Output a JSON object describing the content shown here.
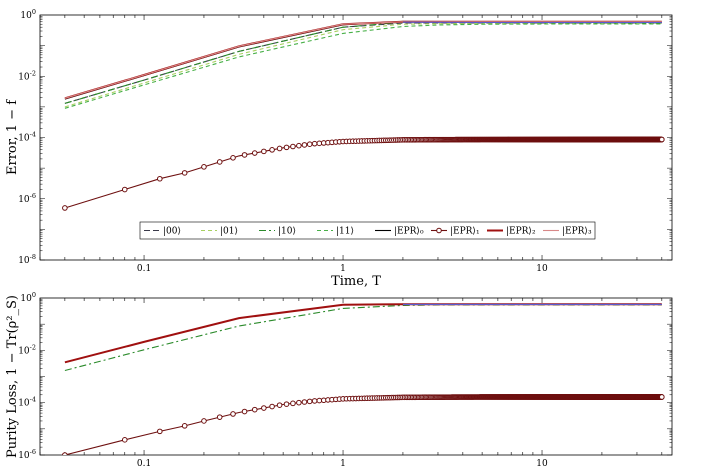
{
  "chart_data": [
    {
      "type": "line",
      "ylabel": "Error, 1 − f",
      "xlabel": "Time, T",
      "xscale": "log",
      "yscale": "log",
      "xlim": [
        0.03,
        45
      ],
      "ylim": [
        1e-08,
        1
      ],
      "x_ticks": [
        {
          "v": 0.1,
          "label": "0.1"
        },
        {
          "v": 1,
          "label": "1"
        },
        {
          "v": 10,
          "label": "10"
        }
      ],
      "y_ticks": [
        {
          "v": 1,
          "label": "10^0"
        },
        {
          "v": 0.01,
          "label": "10^-2"
        },
        {
          "v": 0.0001,
          "label": "10^-4"
        },
        {
          "v": 1e-06,
          "label": "10^-6"
        },
        {
          "v": 1e-08,
          "label": "10^-8"
        }
      ],
      "legend_position": "bottom-center",
      "series": [
        {
          "name": "|00⟩",
          "color": "#3a3a4a",
          "dash": "6,3",
          "x": [
            0.04,
            0.1,
            0.3,
            1,
            2,
            3,
            5,
            10,
            40
          ],
          "y": [
            0.0013,
            0.0075,
            0.065,
            0.4,
            0.55,
            0.55,
            0.55,
            0.55,
            0.55
          ]
        },
        {
          "name": "|01⟩",
          "color": "#a8d060",
          "dash": "4,3",
          "x": [
            0.04,
            0.1,
            0.3,
            1,
            2,
            3,
            5,
            10,
            40
          ],
          "y": [
            0.001,
            0.006,
            0.052,
            0.33,
            0.5,
            0.52,
            0.52,
            0.52,
            0.52
          ]
        },
        {
          "name": "|10⟩",
          "color": "#2a8a2a",
          "dash": "7,3,2,3",
          "x": [
            0.04,
            0.1,
            0.3,
            1,
            2,
            3,
            5,
            10,
            40
          ],
          "y": [
            0.0013,
            0.0075,
            0.065,
            0.4,
            0.58,
            0.6,
            0.58,
            0.56,
            0.55
          ]
        },
        {
          "name": "|11⟩",
          "color": "#48b048",
          "dash": "4,3",
          "x": [
            0.04,
            0.1,
            0.3,
            1,
            2,
            3,
            5,
            10,
            40
          ],
          "y": [
            0.0009,
            0.0052,
            0.043,
            0.25,
            0.42,
            0.47,
            0.5,
            0.51,
            0.51
          ]
        },
        {
          "name": "|EPR⟩₀",
          "color": "#000000",
          "dash": "",
          "x": [
            0.04,
            0.1,
            0.3,
            1,
            2,
            3,
            5,
            10,
            40
          ],
          "y": [
            0.0018,
            0.0105,
            0.09,
            0.48,
            0.62,
            0.61,
            0.58,
            0.57,
            0.57
          ]
        },
        {
          "name": "|EPR⟩₁",
          "color": "#6e1010",
          "dash": "",
          "marker": "circle",
          "x": [
            0.04,
            0.08,
            0.12,
            0.16,
            0.2,
            0.3,
            0.5,
            0.7,
            1,
            2,
            5,
            10,
            40
          ],
          "y": [
            5e-07,
            2e-06,
            4.5e-06,
            7e-06,
            1.1e-05,
            2.5e-05,
            4.6e-05,
            6.2e-05,
            7.4e-05,
            8.4e-05,
            8.6e-05,
            8.6e-05,
            8.6e-05
          ]
        },
        {
          "name": "|EPR⟩₂",
          "color": "#a01010",
          "dash": "",
          "width": 2,
          "x": [
            0.04,
            0.1,
            0.3,
            1,
            2,
            3,
            5,
            10,
            40
          ],
          "y": [
            0.0019,
            0.011,
            0.095,
            0.5,
            0.6,
            0.6,
            0.6,
            0.6,
            0.6
          ]
        },
        {
          "name": "|EPR⟩₃",
          "color": "#d88888",
          "dash": "",
          "x": [
            0.04,
            0.1,
            0.3,
            1,
            2,
            3,
            5,
            10,
            40
          ],
          "y": [
            0.0019,
            0.011,
            0.095,
            0.5,
            0.6,
            0.6,
            0.6,
            0.6,
            0.6
          ]
        },
        {
          "name": "",
          "color": "#5a5ad0",
          "dash": "",
          "x": [
            2,
            5,
            10,
            40
          ],
          "y": [
            0.58,
            0.57,
            0.57,
            0.57
          ]
        }
      ]
    },
    {
      "type": "line",
      "ylabel": "Purity Loss, 1 − Tr(ρ²_S)",
      "xscale": "log",
      "yscale": "log",
      "xlim": [
        0.03,
        45
      ],
      "ylim": [
        1e-06,
        1
      ],
      "x_ticks": [
        {
          "v": 0.1,
          "label": "0.1"
        },
        {
          "v": 1,
          "label": "1"
        },
        {
          "v": 10,
          "label": "10"
        }
      ],
      "y_ticks": [
        {
          "v": 1,
          "label": "10^0"
        },
        {
          "v": 0.01,
          "label": "10^-2"
        },
        {
          "v": 0.0001,
          "label": "10^-4"
        },
        {
          "v": 1e-06,
          "label": "10^-6"
        }
      ],
      "series": [
        {
          "name": "|10⟩",
          "color": "#2a8a2a",
          "dash": "7,3,2,3",
          "x": [
            0.04,
            0.1,
            0.3,
            1,
            2,
            3,
            10,
            40
          ],
          "y": [
            0.0017,
            0.0105,
            0.085,
            0.4,
            0.52,
            0.55,
            0.55,
            0.55
          ]
        },
        {
          "name": "|EPR⟩₂",
          "color": "#a01010",
          "dash": "",
          "width": 2,
          "x": [
            0.04,
            0.1,
            0.3,
            1,
            2,
            3,
            10,
            40
          ],
          "y": [
            0.0035,
            0.021,
            0.17,
            0.55,
            0.58,
            0.58,
            0.58,
            0.58
          ]
        },
        {
          "name": "|EPR⟩₁",
          "color": "#6e1010",
          "dash": "",
          "marker": "circle",
          "x": [
            0.04,
            0.08,
            0.12,
            0.16,
            0.2,
            0.3,
            0.5,
            0.7,
            1,
            2,
            5,
            10,
            40
          ],
          "y": [
            1e-06,
            3.8e-06,
            8e-06,
            1.3e-05,
            2e-05,
            4.2e-05,
            8.5e-05,
            0.000115,
            0.00014,
            0.00016,
            0.000165,
            0.000165,
            0.000165
          ]
        },
        {
          "name": "",
          "color": "#5a5ad0",
          "dash": "",
          "x": [
            2,
            5,
            10,
            40
          ],
          "y": [
            0.57,
            0.57,
            0.57,
            0.57
          ]
        }
      ]
    }
  ]
}
